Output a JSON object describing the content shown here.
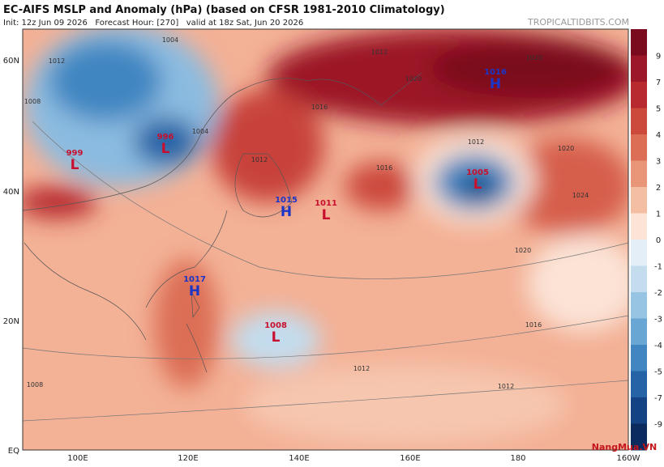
{
  "header": {
    "title": "EC-AIFS MSLP and Anomaly (hPa) (based on CFSR 1981-2010 Climatology)",
    "subtitle": "Init: 12z Jun 09 2026   Forecast Hour: [270]   valid at 18z Sat, Jun 20 2026",
    "site": "TROPICALTIDBITS.COM"
  },
  "map": {
    "lat_labels": [
      "60N",
      "40N",
      "20N",
      "EQ"
    ],
    "lon_labels": [
      "100E",
      "120E",
      "140E",
      "160E",
      "180",
      "160W"
    ],
    "centers": [
      {
        "value": "996",
        "kind": "L"
      },
      {
        "value": "999",
        "kind": "L"
      },
      {
        "value": "1015",
        "kind": "H"
      },
      {
        "value": "1011",
        "kind": "L"
      },
      {
        "value": "1017",
        "kind": "H"
      },
      {
        "value": "1005",
        "kind": "L"
      },
      {
        "value": "1008",
        "kind": "L"
      },
      {
        "value": "1016",
        "kind": "H"
      }
    ],
    "contour_labels": [
      "1012",
      "1004",
      "1008",
      "1004",
      "1012",
      "1012",
      "1016",
      "1020",
      "1020",
      "1012",
      "1016",
      "1020",
      "1024",
      "1020",
      "1016",
      "1012",
      "1012",
      "1008"
    ]
  },
  "colorbar": {
    "labels": [
      "9",
      "7",
      "5",
      "4",
      "3",
      "2",
      "1",
      "0",
      "-1",
      "-2",
      "-3",
      "-4",
      "-5",
      "-7",
      "-9"
    ],
    "colors": [
      "#7a0a1e",
      "#9c1728",
      "#b8292f",
      "#cc4a3c",
      "#dc6e55",
      "#e99577",
      "#f4bea3",
      "#fbe3d6",
      "#e3eef6",
      "#c3dcee",
      "#97c4e2",
      "#69a6d3",
      "#4186c1",
      "#2563a6",
      "#134382",
      "#0b2a5e"
    ]
  },
  "watermark": "NangMua.VN"
}
